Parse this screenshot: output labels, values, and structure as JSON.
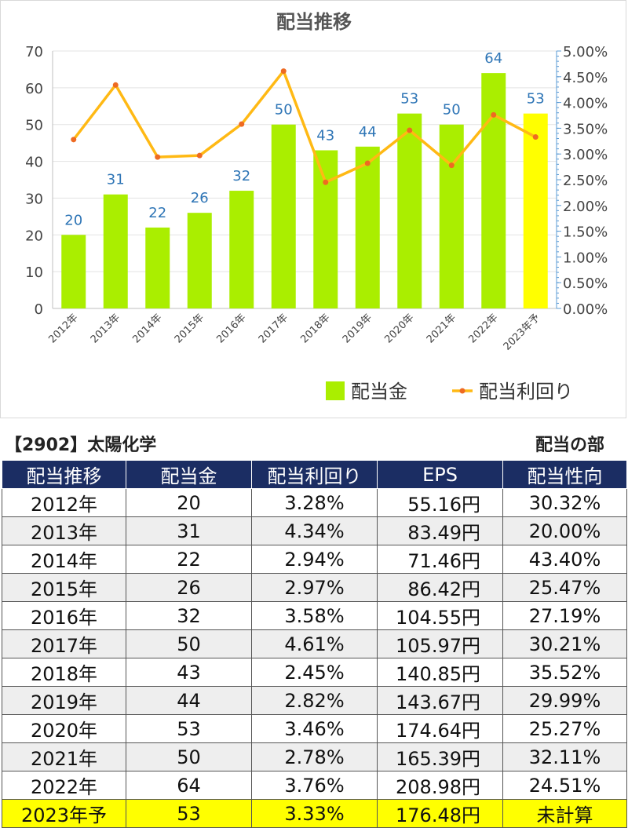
{
  "chart_data": {
    "type": "bar",
    "title": "配当推移",
    "categories": [
      "2012年",
      "2013年",
      "2014年",
      "2015年",
      "2016年",
      "2017年",
      "2018年",
      "2019年",
      "2020年",
      "2021年",
      "2022年",
      "2023年予"
    ],
    "series": [
      {
        "name": "配当金",
        "type": "bar",
        "axis": "left",
        "values": [
          20,
          31,
          22,
          26,
          32,
          50,
          43,
          44,
          53,
          50,
          64,
          53
        ],
        "color": "#aaee00",
        "highlight_color": "#ffff00",
        "highlight_index": 11
      },
      {
        "name": "配当利回り",
        "type": "line",
        "axis": "right",
        "values": [
          3.28,
          4.34,
          2.94,
          2.97,
          3.58,
          4.61,
          2.45,
          2.82,
          3.46,
          2.78,
          3.76,
          3.33
        ],
        "color": "#ffb914",
        "marker_color": "#ee6a22"
      }
    ],
    "y_left": {
      "lim": [
        0,
        70
      ],
      "ticks": [
        "0",
        "10",
        "20",
        "30",
        "40",
        "50",
        "60",
        "70"
      ]
    },
    "y_right": {
      "lim": [
        0,
        5
      ],
      "ticks": [
        "0.00%",
        "0.50%",
        "1.00%",
        "1.50%",
        "2.00%",
        "2.50%",
        "3.00%",
        "3.50%",
        "4.00%",
        "4.50%",
        "5.00%"
      ]
    },
    "data_labels": [
      "20",
      "31",
      "22",
      "26",
      "32",
      "50",
      "43",
      "44",
      "53",
      "50",
      "64",
      "53"
    ],
    "data_label_color": "#2e75b6",
    "legend_position": "bottom-right",
    "grid": true
  },
  "header": {
    "company": "【2902】太陽化学",
    "section": "配当の部"
  },
  "table": {
    "columns": [
      "配当推移",
      "配当金",
      "配当利回り",
      "EPS",
      "配当性向"
    ],
    "rows": [
      [
        "2012年",
        "20",
        "3.28%",
        "55.16円",
        "30.32%"
      ],
      [
        "2013年",
        "31",
        "4.34%",
        "83.49円",
        "20.00%"
      ],
      [
        "2014年",
        "22",
        "2.94%",
        "71.46円",
        "43.40%"
      ],
      [
        "2015年",
        "26",
        "2.97%",
        "86.42円",
        "25.47%"
      ],
      [
        "2016年",
        "32",
        "3.58%",
        "104.55円",
        "27.19%"
      ],
      [
        "2017年",
        "50",
        "4.61%",
        "105.97円",
        "30.21%"
      ],
      [
        "2018年",
        "43",
        "2.45%",
        "140.85円",
        "35.52%"
      ],
      [
        "2019年",
        "44",
        "2.82%",
        "143.67円",
        "29.99%"
      ],
      [
        "2020年",
        "53",
        "3.46%",
        "174.64円",
        "25.27%"
      ],
      [
        "2021年",
        "50",
        "2.78%",
        "165.39円",
        "32.11%"
      ],
      [
        "2022年",
        "64",
        "3.76%",
        "208.98円",
        "24.51%"
      ],
      [
        "2023年予",
        "53",
        "3.33%",
        "176.48円",
        "未計算"
      ]
    ],
    "header_color": "#1b2d63",
    "forecast_row_color": "#ffff00"
  }
}
